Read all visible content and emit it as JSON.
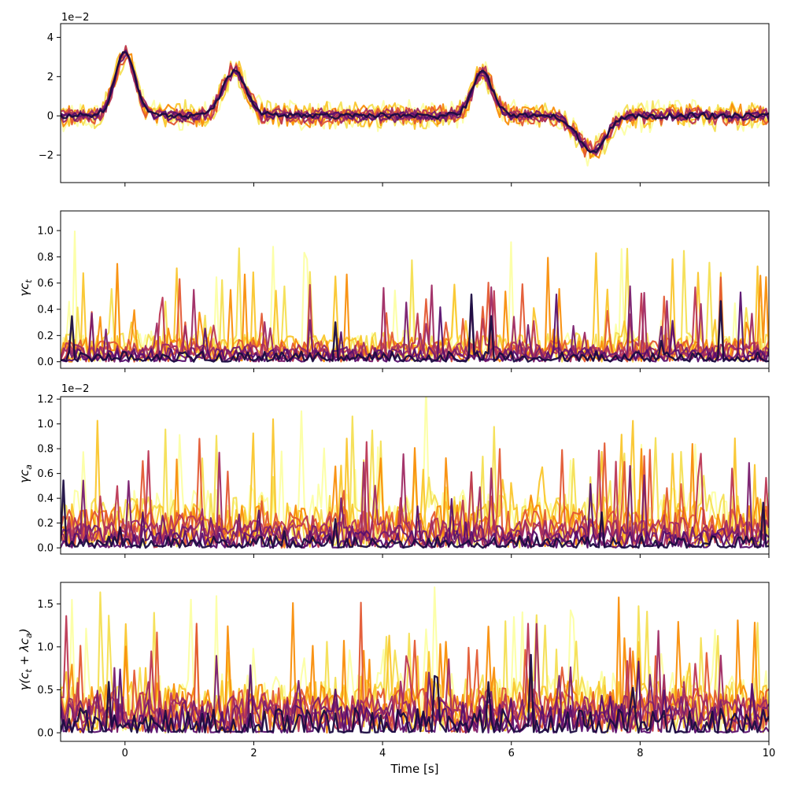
{
  "figure": {
    "xlabel": "Time [s]"
  },
  "palette": [
    "#fcffa4",
    "#f4df53",
    "#fac62d",
    "#f98e09",
    "#e35933",
    "#bc3754",
    "#9f2a63",
    "#781c6d",
    "#57106e",
    "#1b0c41"
  ],
  "chart_data": [
    {
      "type": "line",
      "ylabel": "",
      "offset_text": "1e−2",
      "xlim": [
        -1,
        10
      ],
      "ylim": [
        -3.4,
        4.7
      ],
      "xticks": [
        0,
        2,
        4,
        6,
        8,
        10
      ],
      "yticks": [
        -2,
        0,
        2,
        4
      ],
      "ytick_labels": [
        "−2",
        "0",
        "2",
        "4"
      ],
      "show_xtick_labels": false,
      "pattern": {
        "kind": "erp",
        "base": 0,
        "noise_light": 1.3,
        "noise_dark": 0.25,
        "mean_line": true
      },
      "bumps": [
        {
          "t": 0.0,
          "amp": 3.2,
          "w": 0.22
        },
        {
          "t": 1.7,
          "amp": 2.3,
          "w": 0.25
        },
        {
          "t": 5.55,
          "amp": 2.2,
          "w": 0.22
        },
        {
          "t": 7.25,
          "amp": -1.8,
          "w": 0.3
        }
      ]
    },
    {
      "type": "line",
      "ylabel": "γc_t",
      "offset_text": "",
      "xlim": [
        -1,
        10
      ],
      "ylim": [
        -0.05,
        1.15
      ],
      "xticks": [
        0,
        2,
        4,
        6,
        8,
        10
      ],
      "yticks": [
        0.0,
        0.2,
        0.4,
        0.6,
        0.8,
        1.0
      ],
      "ytick_labels": [
        "0.0",
        "0.2",
        "0.4",
        "0.6",
        "0.8",
        "1.0"
      ],
      "show_xtick_labels": false,
      "pattern": {
        "kind": "spiky",
        "base_light": 0.15,
        "base_dark": 0.05,
        "spike_max": 1.05,
        "dark_floor": 0.0
      },
      "peak_values": [
        1.1,
        1.05,
        1.0,
        0.9,
        0.9,
        0.85,
        0.8,
        0.7,
        0.6
      ]
    },
    {
      "type": "line",
      "ylabel": "γc_a",
      "offset_text": "1e−2",
      "xlim": [
        -1,
        10
      ],
      "ylim": [
        -0.05,
        1.22
      ],
      "xticks": [
        0,
        2,
        4,
        6,
        8,
        10
      ],
      "yticks": [
        0.0,
        0.2,
        0.4,
        0.6,
        0.8,
        1.0,
        1.2
      ],
      "ytick_labels": [
        "0.0",
        "0.2",
        "0.4",
        "0.6",
        "0.8",
        "1.0",
        "1.2"
      ],
      "show_xtick_labels": false,
      "pattern": {
        "kind": "spiky",
        "base_light": 0.3,
        "base_dark": 0.06,
        "spike_max": 1.15,
        "dark_floor": 0.0
      },
      "peak_values": [
        1.15,
        1.03,
        1.0,
        0.95,
        0.92,
        0.85,
        0.83,
        0.8,
        0.73
      ]
    },
    {
      "type": "line",
      "ylabel": "γ(c_t + λc_a)",
      "offset_text": "",
      "xlim": [
        -1,
        10
      ],
      "ylim": [
        -0.1,
        1.75
      ],
      "xticks": [
        0,
        2,
        4,
        6,
        8,
        10
      ],
      "yticks": [
        0.0,
        0.5,
        1.0,
        1.5
      ],
      "ytick_labels": [
        "0.0",
        "0.5",
        "1.0",
        "1.5"
      ],
      "show_xtick_labels": true,
      "xtick_labels": [
        "0",
        "2",
        "4",
        "6",
        "8",
        "10"
      ],
      "pattern": {
        "kind": "spiky",
        "base_light": 0.45,
        "base_dark": 0.18,
        "spike_max": 1.65,
        "dark_floor": 0.0
      },
      "peak_values": [
        1.65,
        1.35,
        1.32,
        1.25,
        1.25,
        1.22,
        1.2,
        1.15,
        1.0
      ]
    }
  ]
}
